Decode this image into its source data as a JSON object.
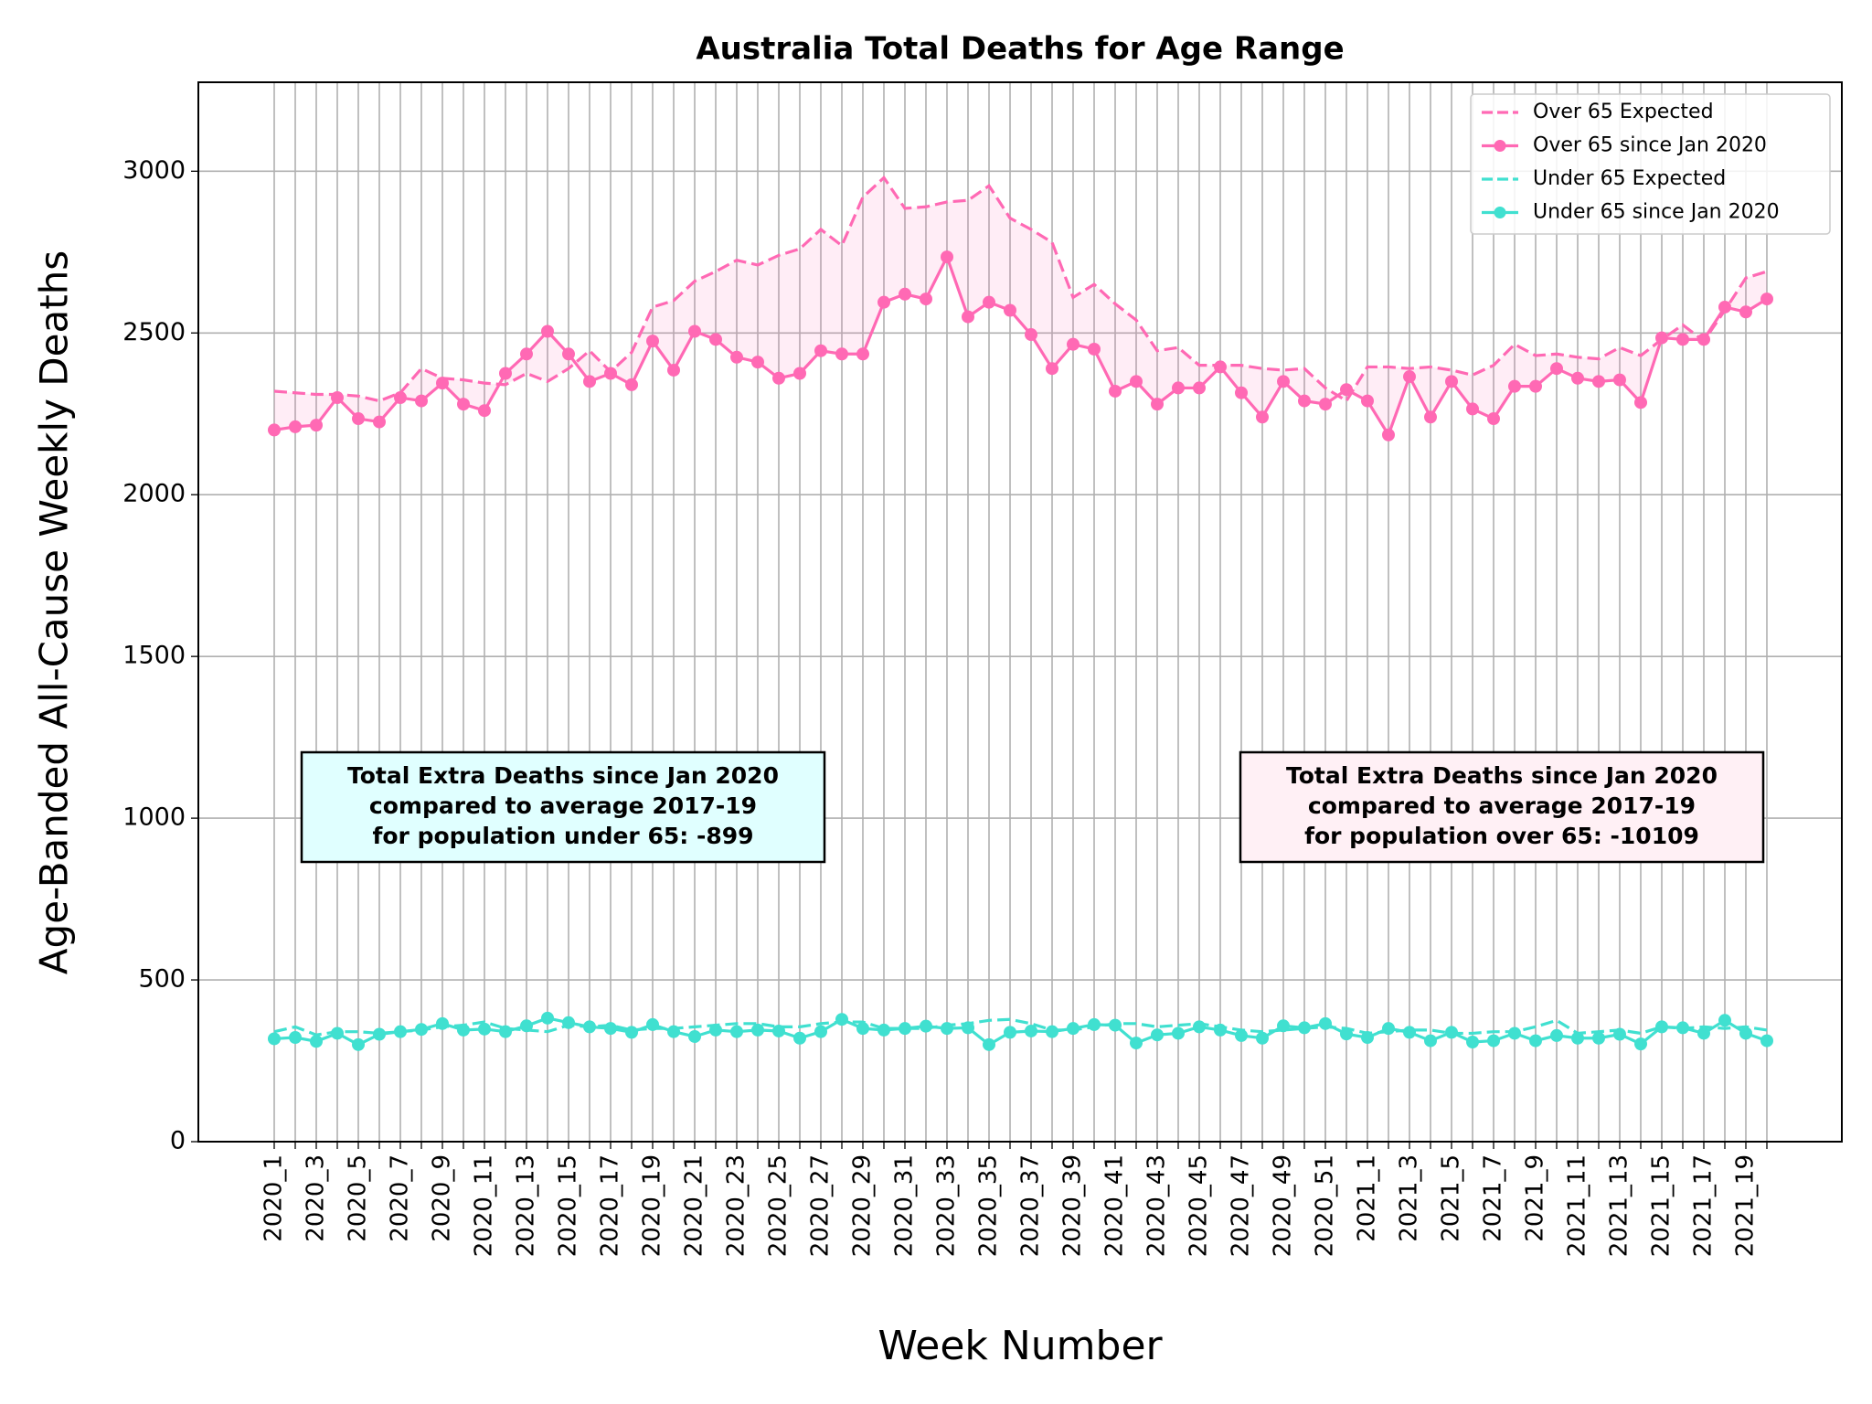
{
  "chart_data": {
    "type": "line",
    "title": "Australia Total Deaths for Age Range",
    "x_label": "Week Number",
    "y_label": "Age-Banded All-Cause Weekly Deaths",
    "categories": [
      "2020_1",
      null,
      "2020_3",
      null,
      "2020_5",
      null,
      "2020_7",
      null,
      "2020_9",
      null,
      "2020_11",
      null,
      "2020_13",
      null,
      "2020_15",
      null,
      "2020_17",
      null,
      "2020_19",
      null,
      "2020_21",
      null,
      "2020_23",
      null,
      "2020_25",
      null,
      "2020_27",
      null,
      "2020_29",
      null,
      "2020_31",
      null,
      "2020_33",
      null,
      "2020_35",
      null,
      "2020_37",
      null,
      "2020_39",
      null,
      "2020_41",
      null,
      "2020_43",
      null,
      "2020_45",
      null,
      "2020_47",
      null,
      "2020_49",
      null,
      "2020_51",
      null,
      "2021_1",
      null,
      "2021_3",
      null,
      "2021_5",
      null,
      "2021_7",
      null,
      "2021_9",
      null,
      "2021_11",
      null,
      "2021_13",
      null,
      "2021_15",
      null,
      "2021_17",
      null,
      "2021_19",
      null
    ],
    "series": [
      {
        "name": "Over 65 Expected",
        "color": "#ff69b4",
        "linestyle": "dashed",
        "marker": false,
        "values": [
          2320,
          2315,
          2310,
          2310,
          2305,
          2290,
          2315,
          2390,
          2360,
          2355,
          2345,
          2340,
          2375,
          2350,
          2390,
          2445,
          2380,
          2440,
          2580,
          2600,
          2660,
          2690,
          2725,
          2710,
          2740,
          2760,
          2820,
          2770,
          2920,
          2980,
          2885,
          2890,
          2905,
          2910,
          2955,
          2855,
          2820,
          2780,
          2610,
          2650,
          2590,
          2540,
          2445,
          2455,
          2400,
          2400,
          2400,
          2390,
          2385,
          2390,
          2330,
          2290,
          2395,
          2395,
          2390,
          2395,
          2385,
          2370,
          2400,
          2465,
          2430,
          2435,
          2425,
          2420,
          2455,
          2430,
          2480,
          2525,
          2475,
          2570,
          2670,
          2690
        ]
      },
      {
        "name": "Over 65 since Jan 2020",
        "color": "#ff69b4",
        "linestyle": "solid",
        "marker": true,
        "values": [
          2200,
          2210,
          2215,
          2300,
          2235,
          2225,
          2300,
          2290,
          2345,
          2280,
          2260,
          2375,
          2435,
          2505,
          2435,
          2350,
          2375,
          2340,
          2475,
          2385,
          2505,
          2480,
          2425,
          2410,
          2360,
          2375,
          2445,
          2435,
          2435,
          2595,
          2620,
          2605,
          2735,
          2550,
          2595,
          2570,
          2495,
          2390,
          2465,
          2450,
          2320,
          2350,
          2280,
          2330,
          2330,
          2395,
          2315,
          2240,
          2350,
          2290,
          2280,
          2325,
          2290,
          2185,
          2365,
          2240,
          2350,
          2265,
          2235,
          2335,
          2335,
          2390,
          2360,
          2350,
          2355,
          2285,
          2485,
          2480,
          2480,
          2580,
          2565,
          2605
        ]
      },
      {
        "name": "Under 65 Expected",
        "color": "#40e0d0",
        "linestyle": "dashed",
        "marker": false,
        "values": [
          340,
          355,
          330,
          340,
          340,
          335,
          340,
          345,
          355,
          360,
          370,
          350,
          345,
          340,
          360,
          355,
          360,
          345,
          350,
          350,
          355,
          360,
          365,
          365,
          355,
          355,
          365,
          370,
          370,
          350,
          350,
          350,
          360,
          365,
          375,
          378,
          365,
          345,
          345,
          355,
          365,
          365,
          355,
          360,
          365,
          355,
          345,
          340,
          345,
          350,
          355,
          350,
          335,
          340,
          345,
          345,
          335,
          335,
          340,
          340,
          355,
          375,
          335,
          340,
          345,
          335,
          355,
          350,
          355,
          350,
          355,
          345
        ]
      },
      {
        "name": "Under 65 since Jan 2020",
        "color": "#40e0d0",
        "linestyle": "solid",
        "marker": true,
        "values": [
          318,
          322,
          310,
          335,
          300,
          332,
          340,
          347,
          365,
          345,
          348,
          340,
          358,
          382,
          368,
          355,
          350,
          338,
          362,
          340,
          325,
          345,
          340,
          345,
          342,
          320,
          340,
          378,
          350,
          345,
          350,
          357,
          350,
          352,
          300,
          338,
          342,
          340,
          350,
          362,
          360,
          305,
          330,
          335,
          355,
          345,
          328,
          320,
          358,
          352,
          365,
          333,
          322,
          350,
          338,
          312,
          338,
          308,
          312,
          335,
          312,
          328,
          320,
          320,
          332,
          302,
          355,
          352,
          335,
          375,
          335,
          312
        ]
      }
    ],
    "fill_color": "#ff69b4",
    "ylim": [
      0,
      3275
    ],
    "yticks": [
      0,
      500,
      1000,
      1500,
      2000,
      2500,
      3000
    ],
    "grid": true,
    "legend": "upper right",
    "annotations": [
      {
        "lines": [
          "Total Extra Deaths since Jan 2020",
          "compared to average 2017-19",
          "for population under 65: -899"
        ],
        "color": "#e0ffff"
      },
      {
        "lines": [
          "Total Extra Deaths since Jan 2020",
          "compared to average 2017-19",
          "for population over 65: -10109"
        ],
        "color": "#fff0f5"
      }
    ]
  }
}
